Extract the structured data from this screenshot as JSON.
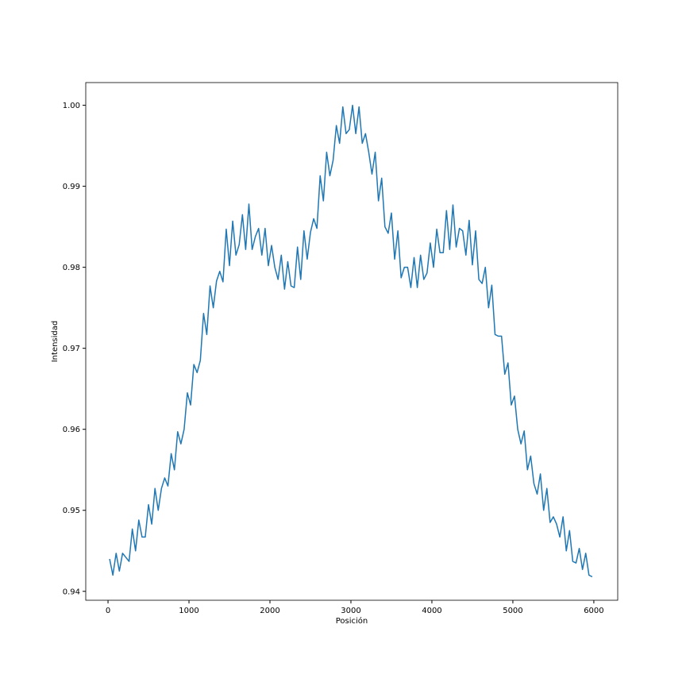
{
  "chart_data": {
    "type": "line",
    "xlabel": "Posición",
    "ylabel": "Intensidad",
    "x": [
      20,
      60,
      100,
      140,
      180,
      220,
      260,
      300,
      340,
      380,
      420,
      460,
      500,
      540,
      580,
      620,
      660,
      700,
      740,
      780,
      820,
      860,
      900,
      940,
      980,
      1020,
      1060,
      1100,
      1140,
      1180,
      1220,
      1260,
      1300,
      1340,
      1380,
      1420,
      1460,
      1500,
      1540,
      1580,
      1620,
      1660,
      1700,
      1740,
      1780,
      1820,
      1860,
      1900,
      1940,
      1980,
      2020,
      2060,
      2100,
      2140,
      2180,
      2220,
      2260,
      2300,
      2340,
      2380,
      2420,
      2460,
      2500,
      2540,
      2580,
      2620,
      2660,
      2700,
      2740,
      2780,
      2820,
      2860,
      2900,
      2940,
      2980,
      3020,
      3060,
      3100,
      3140,
      3180,
      3220,
      3260,
      3300,
      3340,
      3380,
      3420,
      3460,
      3500,
      3540,
      3580,
      3620,
      3660,
      3700,
      3740,
      3780,
      3820,
      3860,
      3900,
      3940,
      3980,
      4020,
      4060,
      4100,
      4140,
      4180,
      4220,
      4260,
      4300,
      4340,
      4380,
      4420,
      4460,
      4500,
      4540,
      4580,
      4620,
      4660,
      4700,
      4740,
      4780,
      4820,
      4860,
      4900,
      4940,
      4980,
      5020,
      5060,
      5100,
      5140,
      5180,
      5220,
      5260,
      5300,
      5340,
      5380,
      5420,
      5460,
      5500,
      5540,
      5580,
      5620,
      5660,
      5700,
      5740,
      5780,
      5820,
      5860,
      5900,
      5940,
      5980
    ],
    "series": [
      {
        "name": "Intensidad",
        "color": "#1f77b4",
        "values": [
          0.944,
          0.942,
          0.9447,
          0.9425,
          0.9447,
          0.9442,
          0.9437,
          0.9477,
          0.945,
          0.9488,
          0.9467,
          0.9467,
          0.9507,
          0.9483,
          0.9527,
          0.95,
          0.9527,
          0.954,
          0.953,
          0.957,
          0.955,
          0.9597,
          0.9582,
          0.96,
          0.9645,
          0.963,
          0.968,
          0.967,
          0.9685,
          0.9743,
          0.9717,
          0.9777,
          0.975,
          0.9783,
          0.9795,
          0.9782,
          0.9847,
          0.9802,
          0.9857,
          0.9815,
          0.9828,
          0.9865,
          0.9822,
          0.9878,
          0.9822,
          0.9838,
          0.9848,
          0.9815,
          0.9848,
          0.9802,
          0.9827,
          0.98,
          0.9785,
          0.9815,
          0.9773,
          0.9807,
          0.9777,
          0.9775,
          0.9825,
          0.9785,
          0.9845,
          0.981,
          0.9843,
          0.986,
          0.9848,
          0.9913,
          0.9882,
          0.9942,
          0.9913,
          0.9932,
          0.9975,
          0.9953,
          0.9998,
          0.9965,
          0.997,
          1.0,
          0.9965,
          0.9998,
          0.9953,
          0.9965,
          0.9942,
          0.9915,
          0.9942,
          0.9882,
          0.991,
          0.985,
          0.9842,
          0.9867,
          0.981,
          0.9845,
          0.9787,
          0.98,
          0.98,
          0.9775,
          0.9812,
          0.9775,
          0.9815,
          0.9785,
          0.9793,
          0.983,
          0.98,
          0.9847,
          0.9818,
          0.9818,
          0.987,
          0.9822,
          0.9877,
          0.9825,
          0.9848,
          0.9845,
          0.9815,
          0.9858,
          0.9803,
          0.9845,
          0.9785,
          0.978,
          0.98,
          0.975,
          0.9778,
          0.9717,
          0.9715,
          0.9715,
          0.9668,
          0.9682,
          0.963,
          0.9641,
          0.96,
          0.9582,
          0.9598,
          0.955,
          0.9567,
          0.9533,
          0.952,
          0.9545,
          0.95,
          0.9527,
          0.9485,
          0.9492,
          0.9483,
          0.9467,
          0.9492,
          0.945,
          0.9475,
          0.9437,
          0.9435,
          0.9453,
          0.9427,
          0.9447,
          0.942,
          0.9418
        ]
      }
    ],
    "xlim": [
      -275,
      6295
    ],
    "ylim": [
      0.9389,
      1.0028
    ],
    "xticks": [
      0,
      1000,
      2000,
      3000,
      4000,
      5000,
      6000
    ],
    "yticks": [
      0.94,
      0.95,
      0.96,
      0.97,
      0.98,
      0.99,
      {
        "value": 1,
        "label": "1.00"
      }
    ],
    "grid": false
  }
}
